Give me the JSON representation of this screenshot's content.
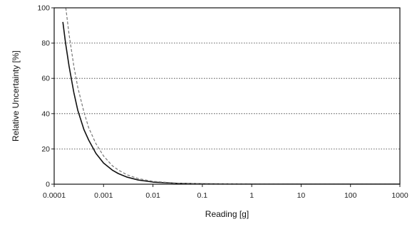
{
  "chart_data": {
    "type": "line",
    "xscale": "log",
    "xlim": [
      0.0001,
      1000
    ],
    "ylim": [
      0,
      100
    ],
    "x_ticks": [
      "0.0001",
      "0.001",
      "0.01",
      "0.1",
      "1",
      "10",
      "100",
      "1000"
    ],
    "y_ticks": [
      "0",
      "20",
      "40",
      "60",
      "80",
      "100"
    ],
    "xlabel": "Reading [g]",
    "ylabel": "Relative Uncertainty [%]",
    "grid": "horizontal dotted",
    "series": [
      {
        "style": "solid",
        "color": "#111111",
        "x": [
          0.00015,
          0.00017,
          0.0002,
          0.00025,
          0.0003,
          0.0004,
          0.0005,
          0.0007,
          0.001,
          0.0015,
          0.002,
          0.003,
          0.005,
          0.01,
          0.03,
          0.1,
          1,
          10,
          100,
          1000
        ],
        "y": [
          92,
          80,
          67,
          52,
          42,
          31,
          25,
          17.5,
          12,
          8,
          6,
          4,
          2.4,
          1.2,
          0.5,
          0.2,
          0.05,
          0.02,
          0.01,
          0.01
        ]
      },
      {
        "style": "dashed",
        "color": "#777777",
        "x": [
          0.000172,
          0.0002,
          0.00025,
          0.0003,
          0.0004,
          0.0005,
          0.0007,
          0.001,
          0.0015,
          0.002,
          0.003,
          0.005,
          0.01,
          0.03,
          0.1,
          1,
          10,
          100,
          1000
        ],
        "y": [
          100,
          85,
          67,
          55,
          41,
          32,
          23,
          16,
          10.5,
          8,
          5.3,
          3.2,
          1.6,
          0.6,
          0.25,
          0.06,
          0.02,
          0.01,
          0.01
        ]
      }
    ]
  }
}
